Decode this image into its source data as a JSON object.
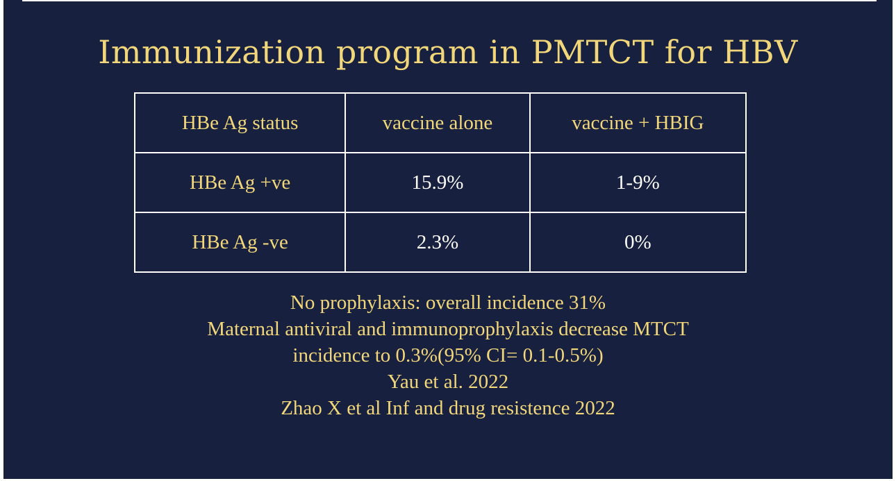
{
  "slide": {
    "title": "Immunization program in PMTCT for HBV",
    "colors": {
      "background": "#182040",
      "accent": "#f1d77a",
      "text_light": "#ffffff"
    }
  },
  "table": {
    "headers": [
      "HBe Ag status",
      "vaccine alone",
      "vaccine + HBIG"
    ],
    "rows": [
      [
        "HBe Ag +ve",
        "15.9%",
        "1-9%"
      ],
      [
        "HBe Ag -ve",
        "2.3%",
        "0%"
      ]
    ]
  },
  "notes": [
    "No prophylaxis: overall incidence 31%",
    "Maternal antiviral and immunoprophylaxis decrease MTCT",
    "incidence to 0.3%(95% CI= 0.1-0.5%)",
    "Yau et al. 2022",
    "Zhao X et al Inf and drug resistence 2022"
  ]
}
